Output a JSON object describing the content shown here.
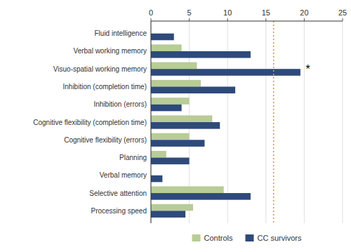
{
  "chart_data": {
    "type": "bar",
    "orientation": "horizontal",
    "categories": [
      "Processing speed",
      "Selective attention",
      "Verbal memory",
      "Planning",
      "Cognitive flexibility (errors)",
      "Cognitive flexibility (completion time)",
      "Inhibition (errors)",
      "Inhibition (completion time)",
      "Visuo-spatial working memory",
      "Verbal working memory",
      "Fluid intelligence"
    ],
    "series": [
      {
        "name": "Controls",
        "color": "#b8cc96",
        "values": [
          5.5,
          9.5,
          0,
          2,
          5,
          8,
          5,
          6.5,
          6,
          4,
          0
        ]
      },
      {
        "name": "CC survivors",
        "color": "#2e4a7a",
        "values": [
          4.5,
          13,
          1.5,
          5,
          7,
          9,
          4,
          11,
          19.5,
          13,
          3
        ]
      }
    ],
    "xlim": [
      0,
      25
    ],
    "xticks": [
      0,
      5,
      10,
      15,
      20,
      25
    ],
    "cutoff_line": 16,
    "cutoff_color": "#c8a040",
    "annotations": [
      {
        "text": "*",
        "x": 20.2,
        "category": "Visuo-spatial working memory"
      }
    ],
    "grid": true,
    "legend": "bottom"
  }
}
